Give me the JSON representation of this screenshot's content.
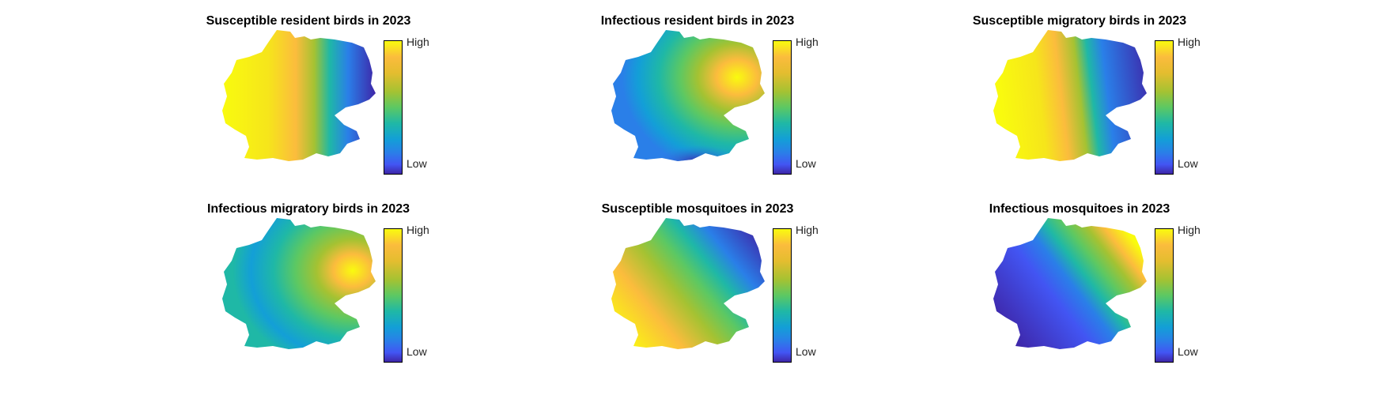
{
  "figure": {
    "panels": [
      {
        "id": "s-res",
        "title": "Susceptible resident birds in 2023",
        "gradient": "east-west",
        "high": "west",
        "colorbar": {
          "high": "High",
          "low": "Low"
        }
      },
      {
        "id": "i-res",
        "title": "Infectious resident birds in 2023",
        "gradient": "patchy",
        "high": "east",
        "colorbar": {
          "high": "High",
          "low": "Low"
        }
      },
      {
        "id": "s-mig",
        "title": "Susceptible migratory birds in 2023",
        "gradient": "east-west",
        "high": "west",
        "colorbar": {
          "high": "High",
          "low": "Low"
        }
      },
      {
        "id": "i-mig",
        "title": "Infectious migratory birds in 2023",
        "gradient": "patchy",
        "high": "east",
        "colorbar": {
          "high": "High",
          "low": "Low"
        }
      },
      {
        "id": "s-mos",
        "title": "Susceptible mosquitoes in 2023",
        "gradient": "diagonal",
        "high": "southwest",
        "colorbar": {
          "high": "High",
          "low": "Low"
        }
      },
      {
        "id": "i-mos",
        "title": "Infectious mosquitoes in 2023",
        "gradient": "diagonal",
        "high": "east",
        "colorbar": {
          "high": "High",
          "low": "Low"
        }
      }
    ],
    "colormap": [
      "#3e26a8",
      "#2a7fe8",
      "#1fb8a6",
      "#5cc863",
      "#a5c232",
      "#fbbc3d",
      "#f9fb0e"
    ]
  }
}
